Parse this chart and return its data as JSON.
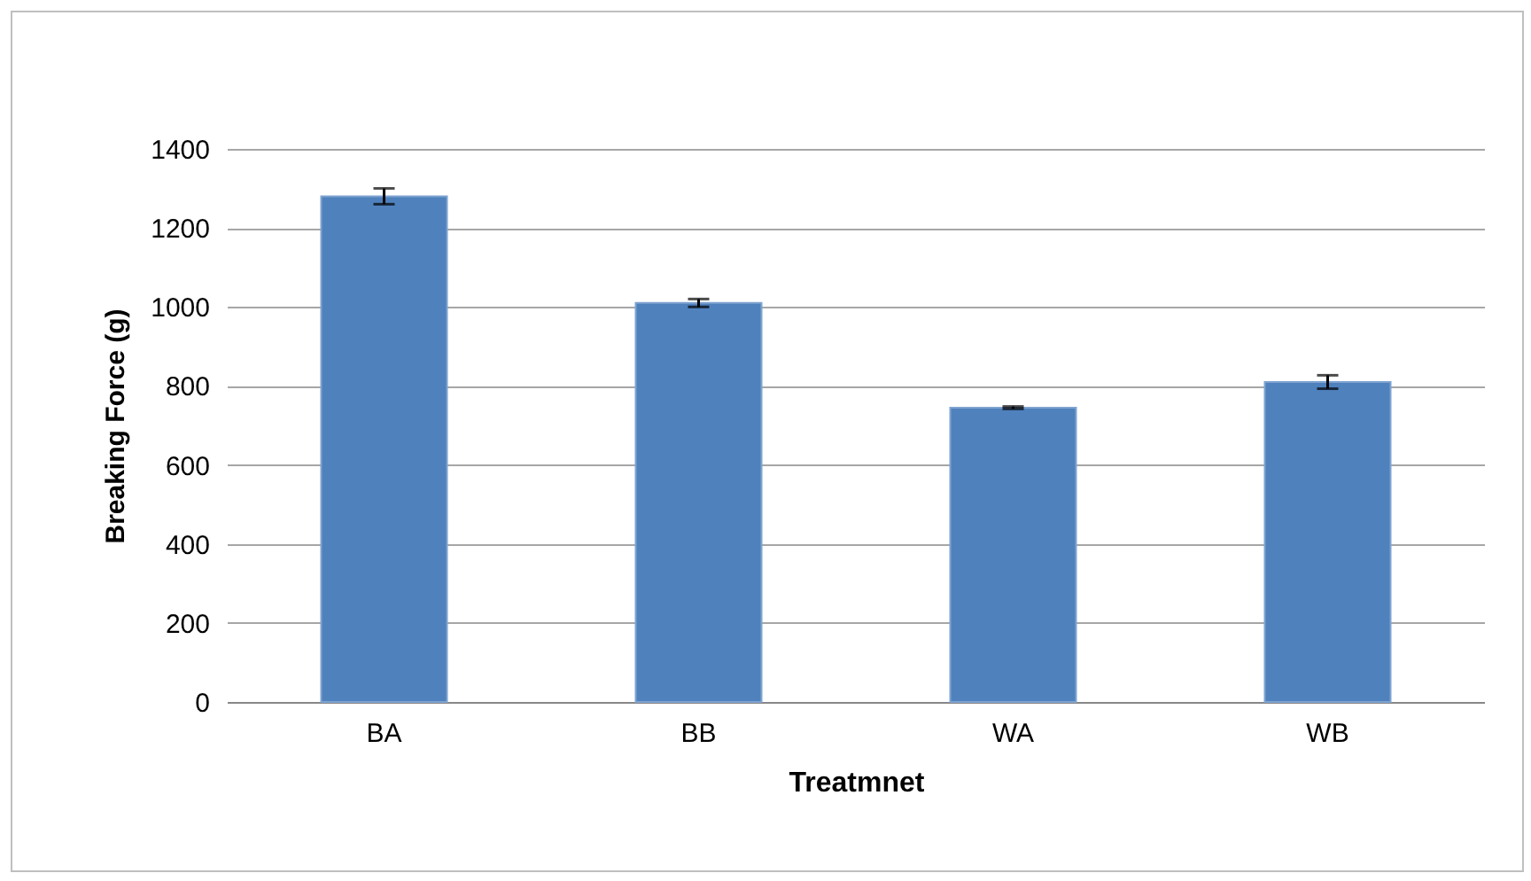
{
  "chart_data": {
    "type": "bar",
    "xlabel": "Treatmnet",
    "ylabel": "Breaking Force (g)",
    "categories": [
      "BA",
      "BB",
      "WA",
      "WB"
    ],
    "values": [
      1280,
      1010,
      745,
      810
    ],
    "errors": [
      20,
      10,
      3,
      17
    ],
    "color": "#4f81bd",
    "ylim": [
      0,
      1400
    ],
    "yticks": [
      0,
      200,
      400,
      600,
      800,
      1000,
      1200,
      1400
    ],
    "grid": "y"
  }
}
